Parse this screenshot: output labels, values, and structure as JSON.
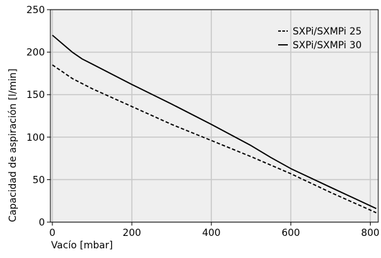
{
  "chart_data": {
    "type": "line",
    "title": "",
    "xlabel": "Vacío [mbar]",
    "ylabel": "Capacidad de aspiración [l/min]",
    "xlim": [
      -5,
      820
    ],
    "ylim": [
      0,
      250
    ],
    "x_ticks": [
      0,
      200,
      400,
      600,
      800
    ],
    "y_ticks": [
      0,
      50,
      100,
      150,
      200,
      250
    ],
    "x_tick_labels": [
      "0",
      "200",
      "400",
      "600",
      "800"
    ],
    "y_tick_labels": [
      "0",
      "50",
      "100",
      "150",
      "200",
      "250"
    ],
    "grid": true,
    "legend_position": "top-right",
    "background_color": "#efefef",
    "grid_color": "#c8c8c8",
    "series": [
      {
        "name": "SXPi/SXMPi 25",
        "line_style": "dashed",
        "color": "#000000",
        "x": [
          0,
          25,
          50,
          100,
          200,
          300,
          400,
          500,
          600,
          700,
          815
        ],
        "y": [
          185,
          177,
          169,
          157,
          136,
          115,
          96,
          77,
          57,
          35,
          11
        ]
      },
      {
        "name": "SXPi/SXMPi 30",
        "line_style": "solid",
        "color": "#000000",
        "x": [
          0,
          25,
          50,
          75,
          100,
          200,
          300,
          400,
          500,
          550,
          600,
          700,
          815
        ],
        "y": [
          220,
          210,
          200,
          192,
          186,
          162,
          139,
          115,
          90,
          76,
          63,
          41,
          16
        ]
      }
    ]
  }
}
